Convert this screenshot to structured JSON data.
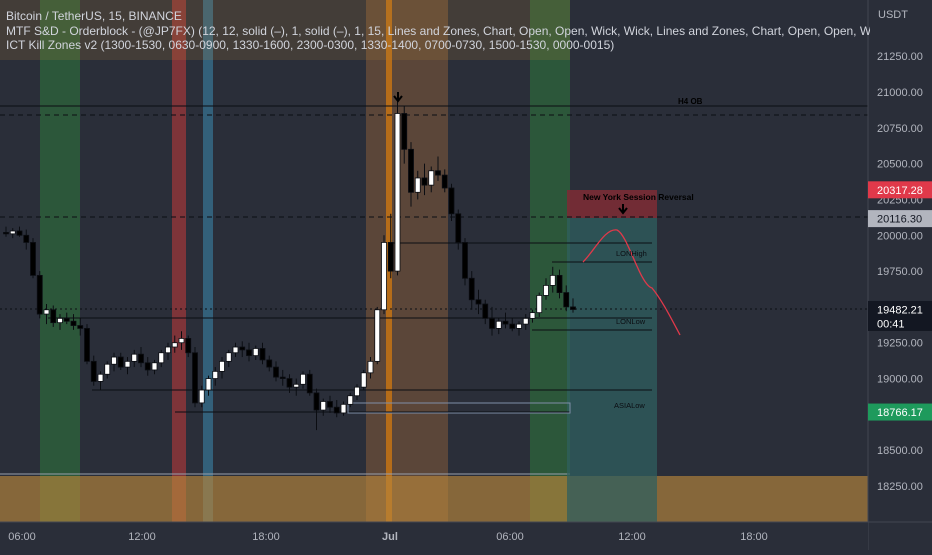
{
  "legend": {
    "title": "Bitcoin / TetherUS, 15, BINANCE",
    "indicator1": "MTF S&D - Orderblock - (@JP7FX) (12, 12, solid (–), 1, solid (–), 1, 15, Lines and Zones, Chart, Open, Open, Wick, Wick, Lines and Zones, Chart, Open, Open, Wick,",
    "indicator2": "ICT Kill Zones v2 (1300-1530, 0630-0900, 1330-1600, 2300-0300, 1330-1400, 0700-0730, 1500-1530, 0000-0015)"
  },
  "price_axis": {
    "currency": "USDT",
    "ticks": [
      "21250.00",
      "21000.00",
      "20750.00",
      "20500.00",
      "20250.00",
      "20000.00",
      "19750.00",
      "19500.00",
      "19250.00",
      "19000.00",
      "18750.00",
      "18500.00",
      "18250.00"
    ],
    "badges": [
      {
        "id": "red",
        "text": "20317.28",
        "color": "#e0394a"
      },
      {
        "id": "gray",
        "text": "20116.30",
        "color": "#b2b5be"
      },
      {
        "id": "last",
        "text": "19482.21",
        "countdown": "00:41",
        "color": "#131722"
      },
      {
        "id": "green",
        "text": "18766.17",
        "color": "#1e9a5c"
      }
    ]
  },
  "time_axis": {
    "ticks": [
      "06:00",
      "12:00",
      "18:00",
      "Jul",
      "06:00",
      "12:00",
      "18:00"
    ]
  },
  "annotations": {
    "h4_ob": "H4 OB",
    "ny_reversal": "New York Session Reversal",
    "lon_high": "LONHigh",
    "lon_low": "LONLow",
    "asia_low": "ASIALow"
  },
  "colors": {
    "up": "#ffffff",
    "down": "#000000",
    "zone_orange": "#b8863a",
    "killzone_green": "#2e8a3c",
    "killzone_red": "#c23a3a",
    "killzone_blue": "#3a8ab0",
    "killzone_orange": "#b8733a",
    "projection_teal": "#2f5f5f",
    "projection_red": "#7a2c35",
    "forecast_line": "#e0394a"
  },
  "chart_data": {
    "type": "candlestick",
    "symbol": "BTCUSDT",
    "interval": "15",
    "ylim": [
      18100,
      21450
    ],
    "x_ticks": [
      "06:00",
      "12:00",
      "18:00",
      "Jul",
      "06:00",
      "12:00",
      "18:00"
    ],
    "ohlc": [
      [
        20020,
        20060,
        19990,
        20010
      ],
      [
        20010,
        20050,
        19980,
        20030
      ],
      [
        20030,
        20060,
        19990,
        20000
      ],
      [
        20000,
        20040,
        19900,
        19950
      ],
      [
        19950,
        19980,
        19700,
        19720
      ],
      [
        19720,
        19750,
        19420,
        19450
      ],
      [
        19450,
        19520,
        19380,
        19480
      ],
      [
        19480,
        19510,
        19360,
        19390
      ],
      [
        19390,
        19450,
        19340,
        19420
      ],
      [
        19420,
        19460,
        19380,
        19400
      ],
      [
        19400,
        19450,
        19340,
        19370
      ],
      [
        19370,
        19420,
        19300,
        19350
      ],
      [
        19350,
        19380,
        19100,
        19120
      ],
      [
        19120,
        19160,
        18950,
        18980
      ],
      [
        18980,
        19050,
        18920,
        19030
      ],
      [
        19030,
        19120,
        19000,
        19100
      ],
      [
        19100,
        19180,
        19050,
        19150
      ],
      [
        19150,
        19180,
        19060,
        19080
      ],
      [
        19080,
        19150,
        19030,
        19120
      ],
      [
        19120,
        19200,
        19080,
        19170
      ],
      [
        19170,
        19220,
        19080,
        19110
      ],
      [
        19110,
        19150,
        19020,
        19060
      ],
      [
        19060,
        19130,
        19030,
        19110
      ],
      [
        19110,
        19200,
        19080,
        19180
      ],
      [
        19180,
        19250,
        19130,
        19220
      ],
      [
        19220,
        19300,
        19180,
        19250
      ],
      [
        19250,
        19330,
        19200,
        19280
      ],
      [
        19280,
        19300,
        19150,
        19180
      ],
      [
        19180,
        19220,
        18800,
        18830
      ],
      [
        18830,
        18950,
        18800,
        18920
      ],
      [
        18920,
        19020,
        18880,
        19000
      ],
      [
        19000,
        19080,
        18950,
        19050
      ],
      [
        19050,
        19150,
        19000,
        19120
      ],
      [
        19120,
        19200,
        19080,
        19180
      ],
      [
        19180,
        19250,
        19150,
        19220
      ],
      [
        19220,
        19260,
        19150,
        19200
      ],
      [
        19200,
        19250,
        19120,
        19160
      ],
      [
        19160,
        19230,
        19130,
        19210
      ],
      [
        19210,
        19250,
        19100,
        19130
      ],
      [
        19130,
        19160,
        19050,
        19080
      ],
      [
        19080,
        19120,
        18980,
        19010
      ],
      [
        19010,
        19060,
        18950,
        19000
      ],
      [
        19000,
        19030,
        18900,
        18940
      ],
      [
        18940,
        19000,
        18880,
        18960
      ],
      [
        18960,
        19050,
        18930,
        19030
      ],
      [
        19030,
        19060,
        18880,
        18900
      ],
      [
        18900,
        18930,
        18640,
        18780
      ],
      [
        18780,
        18860,
        18740,
        18840
      ],
      [
        18840,
        18880,
        18760,
        18800
      ],
      [
        18800,
        18850,
        18730,
        18760
      ],
      [
        18760,
        18840,
        18740,
        18820
      ],
      [
        18820,
        18900,
        18800,
        18880
      ],
      [
        18880,
        18960,
        18850,
        18940
      ],
      [
        18940,
        19060,
        18920,
        19040
      ],
      [
        19040,
        19150,
        19000,
        19120
      ],
      [
        19120,
        19500,
        19100,
        19480
      ],
      [
        19480,
        20000,
        19450,
        19950
      ],
      [
        19950,
        20150,
        19700,
        19750
      ],
      [
        19750,
        21000,
        19720,
        20850
      ],
      [
        20850,
        20900,
        20500,
        20600
      ],
      [
        20600,
        20650,
        20200,
        20300
      ],
      [
        20300,
        20450,
        20250,
        20400
      ],
      [
        20400,
        20500,
        20280,
        20350
      ],
      [
        20350,
        20480,
        20300,
        20450
      ],
      [
        20450,
        20550,
        20380,
        20420
      ],
      [
        20420,
        20460,
        20300,
        20330
      ],
      [
        20330,
        20360,
        20100,
        20150
      ],
      [
        20150,
        20180,
        19900,
        19950
      ],
      [
        19950,
        19980,
        19650,
        19700
      ],
      [
        19700,
        19750,
        19480,
        19550
      ],
      [
        19550,
        19620,
        19450,
        19520
      ],
      [
        19520,
        19550,
        19380,
        19420
      ],
      [
        19420,
        19500,
        19300,
        19350
      ],
      [
        19350,
        19420,
        19310,
        19400
      ],
      [
        19400,
        19460,
        19350,
        19380
      ],
      [
        19380,
        19420,
        19330,
        19350
      ],
      [
        19350,
        19400,
        19300,
        19380
      ],
      [
        19380,
        19450,
        19340,
        19420
      ],
      [
        19420,
        19480,
        19390,
        19460
      ],
      [
        19460,
        19600,
        19430,
        19580
      ],
      [
        19580,
        19700,
        19550,
        19650
      ],
      [
        19650,
        19780,
        19600,
        19720
      ],
      [
        19720,
        19760,
        19560,
        19600
      ],
      [
        19600,
        19650,
        19470,
        19500
      ],
      [
        19500,
        19560,
        19460,
        19482
      ]
    ]
  }
}
